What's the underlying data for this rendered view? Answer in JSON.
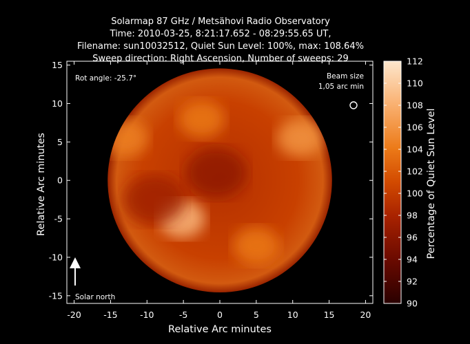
{
  "title_lines": [
    "Solarmap 87 GHz / Metsähovi Radio Observatory",
    "Time: 2010-03-25,  8:21:17.652 - 08:29:55.65 UT,",
    "Filename: sun10032512, Quiet Sun Level: 100%, max: 108.64%",
    "Sweep direction: Right Ascension, Number of sweeps: 29"
  ],
  "annotations": {
    "rot_angle": "Rot angle: -25.7°",
    "beam_size_line1": "Beam size",
    "beam_size_line2": "1,05 arc min",
    "solar_north": "Solar north"
  },
  "colors": {
    "background": "#000000",
    "colormap": [
      "#3a0000",
      "#8a1200",
      "#c83a00",
      "#e86a10",
      "#f7a055",
      "#fde0c0"
    ]
  },
  "chart_data": {
    "type": "heatmap",
    "xlabel": "Relative Arc minutes",
    "ylabel": "Relative Arc minutes",
    "xlim": [
      -21,
      21
    ],
    "ylim": [
      -16,
      15.5
    ],
    "x_ticks": [
      -20,
      -15,
      -10,
      -5,
      0,
      5,
      10,
      15,
      20
    ],
    "y_ticks": [
      -15,
      -10,
      -5,
      0,
      5,
      10,
      15
    ],
    "solar_disk": {
      "center": [
        0,
        0
      ],
      "radius_arcmin": 15.4
    },
    "quiet_sun_level_pct": 100,
    "max_pct": 108.64,
    "colorbar": {
      "label": "Percentage of Quiet Sun Level",
      "range": [
        90,
        112
      ],
      "ticks": [
        90,
        92,
        94,
        96,
        98,
        100,
        102,
        104,
        106,
        108,
        110,
        112
      ]
    },
    "features": [
      {
        "name": "bright region",
        "x": -5.2,
        "y": -5.0,
        "value": 108.6
      },
      {
        "name": "bright region",
        "x": 11.0,
        "y": 5.5,
        "value": 106.0
      },
      {
        "name": "bright region",
        "x": -13.0,
        "y": 5.5,
        "value": 104.5
      },
      {
        "name": "bright region",
        "x": -2.5,
        "y": 8.0,
        "value": 104.0
      },
      {
        "name": "bright region",
        "x": 5.0,
        "y": -8.5,
        "value": 104.0
      },
      {
        "name": "dark region",
        "x": -0.5,
        "y": 1.0,
        "value": 96.0
      },
      {
        "name": "dark region",
        "x": -9.0,
        "y": -2.5,
        "value": 97.0
      }
    ]
  }
}
